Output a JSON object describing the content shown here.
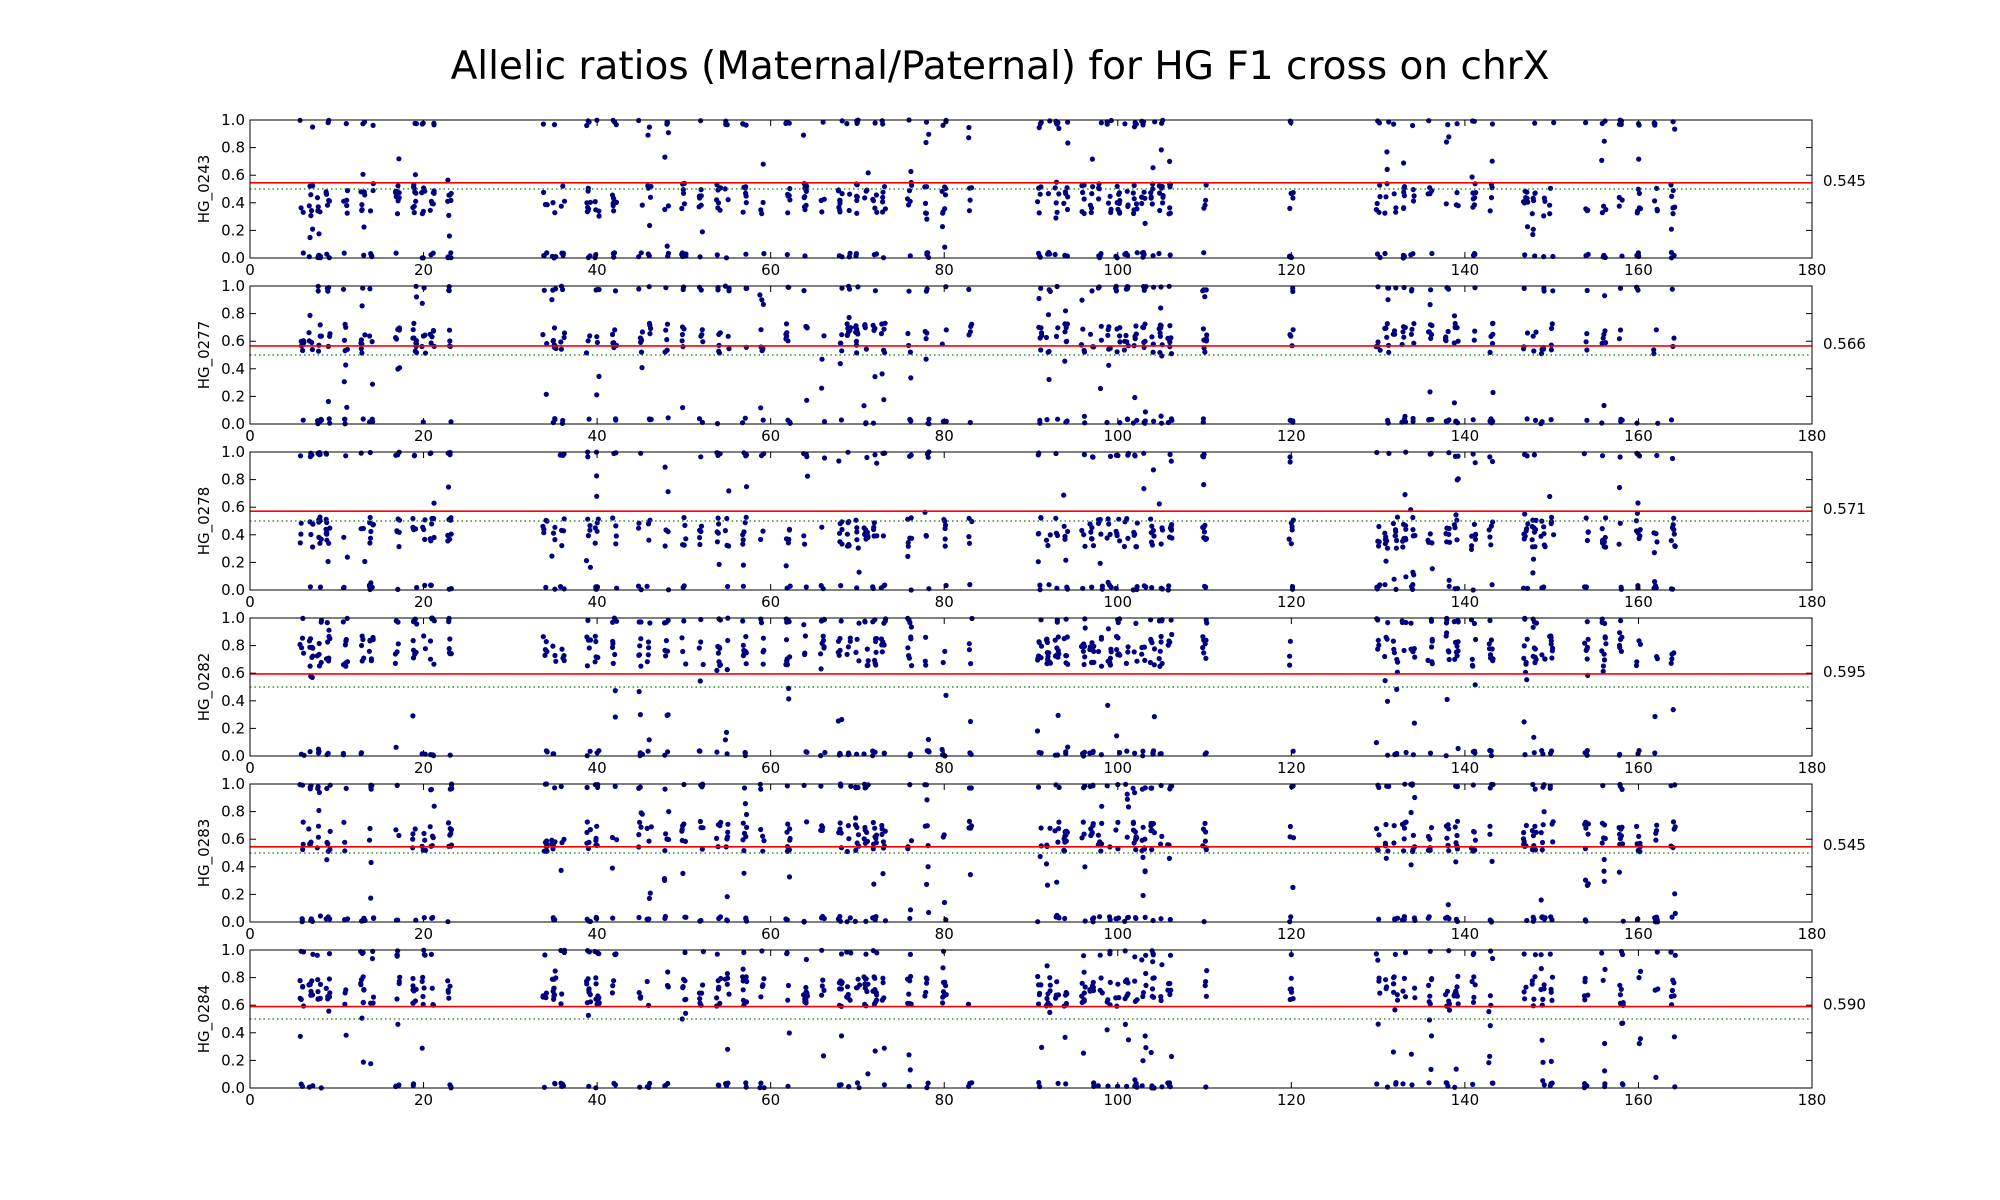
{
  "chart_data": {
    "type": "scatter",
    "title": "Allelic ratios (Maternal/Paternal) for HG F1 cross on chrX",
    "x_ticks": [
      0,
      20,
      40,
      60,
      80,
      100,
      120,
      140,
      160,
      180
    ],
    "y_ticks": [
      "0.0",
      "0.2",
      "0.4",
      "0.6",
      "0.8",
      "1.0"
    ],
    "xlim": [
      0,
      180
    ],
    "ylim": [
      0,
      1
    ],
    "grid": false,
    "colors": {
      "points": "#000080",
      "mean_line": "#ff0000",
      "reference_line": "#008000",
      "axes": "#000000"
    },
    "reference_value": 0.5,
    "marker_columns_x": [
      6,
      7,
      8,
      9,
      11,
      13,
      14,
      17,
      19,
      20,
      21,
      23,
      34,
      35,
      36,
      39,
      40,
      42,
      45,
      46,
      48,
      50,
      52,
      54,
      55,
      57,
      59,
      62,
      64,
      66,
      68,
      69,
      70,
      71,
      72,
      73,
      76,
      78,
      80,
      83,
      91,
      92,
      93,
      94,
      96,
      97,
      98,
      99,
      100,
      101,
      102,
      103,
      104,
      105,
      106,
      110,
      120,
      130,
      131,
      132,
      133,
      134,
      136,
      138,
      139,
      141,
      143,
      147,
      148,
      149,
      150,
      154,
      156,
      158,
      160,
      162,
      164
    ],
    "panels": [
      {
        "sample": "HG_0243",
        "mean_ratio": 0.545,
        "mean_label": "0.545",
        "cluster_center": 0.43
      },
      {
        "sample": "HG_0277",
        "mean_ratio": 0.566,
        "mean_label": "0.566",
        "cluster_center": 0.62
      },
      {
        "sample": "HG_0278",
        "mean_ratio": 0.571,
        "mean_label": "0.571",
        "cluster_center": 0.42
      },
      {
        "sample": "HG_0282",
        "mean_ratio": 0.595,
        "mean_label": "0.595",
        "cluster_center": 0.76
      },
      {
        "sample": "HG_0283",
        "mean_ratio": 0.545,
        "mean_label": "0.545",
        "cluster_center": 0.62
      },
      {
        "sample": "HG_0284",
        "mean_ratio": 0.59,
        "mean_label": "0.590",
        "cluster_center": 0.7
      }
    ]
  }
}
